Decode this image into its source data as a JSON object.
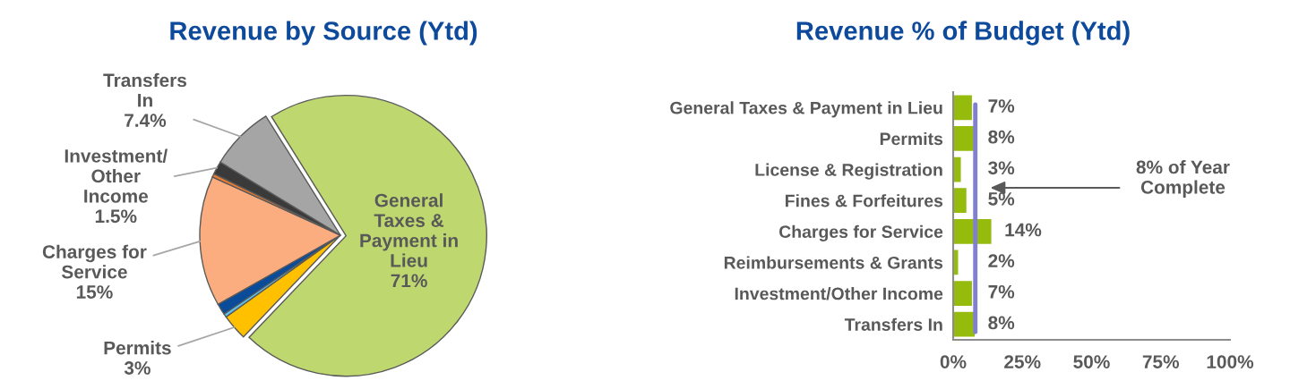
{
  "chart_data": [
    {
      "type": "pie",
      "title": "Revenue by Source (Ytd)",
      "categories": [
        "General\nTaxes &\nPayment in\nLieu",
        "Permits",
        null,
        null,
        "Charges for\nService",
        null,
        "Investment/\nOther\nIncome",
        "Transfers\nIn"
      ],
      "values": [
        71,
        3,
        0.4,
        1.3,
        15,
        0.4,
        1.5,
        7.4
      ],
      "colors": [
        "#bed86f",
        "#ffc000",
        "#5bc5f2",
        "#0b4c9a",
        "#fcad7f",
        "#ed7d31",
        "#3a3a3a",
        "#a5a5a5"
      ],
      "value_labels": [
        "71%",
        "3%",
        null,
        null,
        "15%",
        null,
        "1.5%",
        "7.4%"
      ]
    },
    {
      "type": "bar",
      "orientation": "horizontal",
      "title": "Revenue % of Budget (Ytd)",
      "categories": [
        "General Taxes & Payment in Lieu",
        "Permits",
        "License & Registration",
        "Fines & Forfeitures",
        "Charges for Service",
        "Reimbursements & Grants",
        "Investment/Other Income",
        "Transfers In"
      ],
      "values": [
        7,
        8,
        3,
        5,
        14,
        2,
        7,
        8
      ],
      "color": "#95bb0c",
      "xlim": [
        0,
        100
      ],
      "xticks": [
        {
          "value": 0,
          "label": "0%"
        },
        {
          "value": 25,
          "label": "25%"
        },
        {
          "value": 50,
          "label": "50%"
        },
        {
          "value": 75,
          "label": "75%"
        },
        {
          "value": 100,
          "label": "100%"
        }
      ],
      "value_labels": [
        "7%",
        "8%",
        "3%",
        "5%",
        "14%",
        "2%",
        "7%",
        "8%"
      ],
      "ref_lines": [
        {
          "axis": "x",
          "value": 8,
          "color": "#8080d0"
        }
      ],
      "annotations": [
        "8% of Year\nComplete"
      ]
    }
  ]
}
